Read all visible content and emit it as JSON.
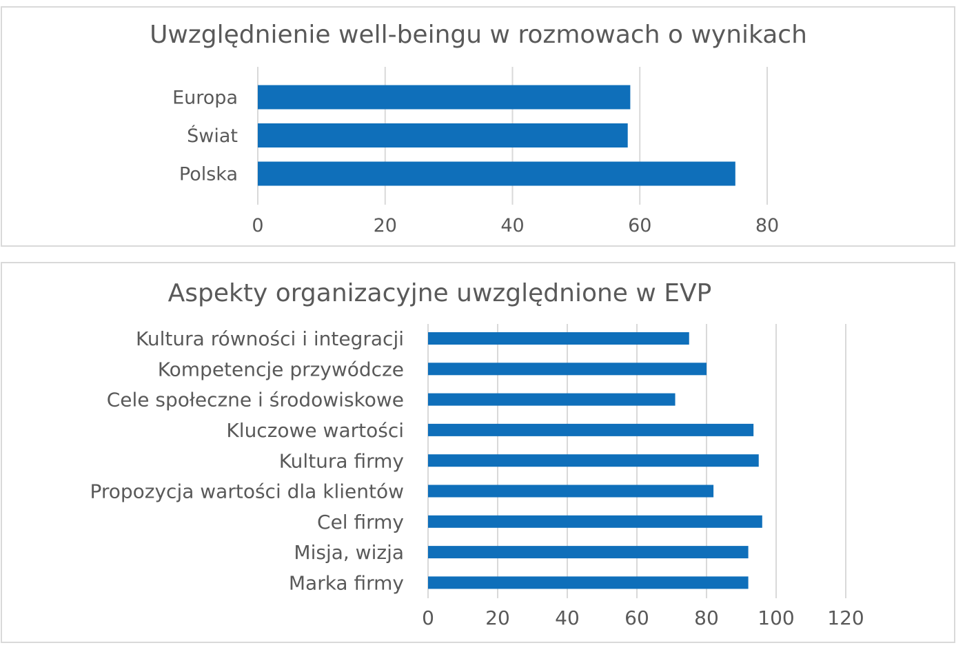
{
  "colors": {
    "bar": "#0F6FBA",
    "grid": "#D9D9D9",
    "border": "#D9D9D9",
    "text": "#595959"
  },
  "chart_data": [
    {
      "type": "bar",
      "orientation": "horizontal",
      "title": "Uwzględnienie well-beingu w rozmowach o wynikach",
      "categories": [
        "Europa",
        "Świat",
        "Polska"
      ],
      "values": [
        58.5,
        58.1,
        75
      ],
      "xlim": [
        0,
        80
      ],
      "xticks": [
        "0",
        "20",
        "40",
        "60",
        "80"
      ],
      "grid": true,
      "legend": "none"
    },
    {
      "type": "bar",
      "orientation": "horizontal",
      "title": "Aspekty organizacyjne uwzględnione w EVP",
      "categories": [
        "Kultura równości i integracji",
        "Kompetencje przywódcze",
        "Cele społeczne i środowiskowe",
        "Kluczowe wartości",
        "Kultura firmy",
        "Propozycja wartości dla klientów",
        "Cel firmy",
        "Misja, wizja",
        "Marka firmy"
      ],
      "values": [
        75,
        80,
        71,
        93.5,
        95,
        82,
        96,
        92,
        92
      ],
      "xlim": [
        0,
        120
      ],
      "xticks": [
        "0",
        "20",
        "40",
        "60",
        "80",
        "100",
        "120"
      ],
      "grid": true,
      "legend": "none"
    }
  ]
}
